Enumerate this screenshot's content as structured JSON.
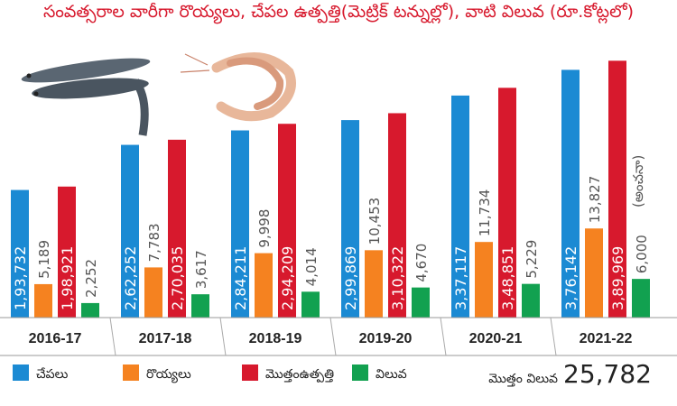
{
  "chart_data": {
    "type": "bar",
    "title": "సంవత్సరాల వారీగా రొయ్యలు, చేపల ఉత్పత్తి(మెట్రిక్ టన్నుల్లో), వాటి విలువ (రూ.కోట్లలో)",
    "categories": [
      "2016-17",
      "2017-18",
      "2018-19",
      "2019-20",
      "2020-21",
      "2021-22"
    ],
    "series": [
      {
        "name": "చేపలు",
        "color": "#1b8ad3",
        "values": [
          193732,
          262252,
          284211,
          299869,
          337117,
          376142
        ],
        "labels": [
          "1,93,732",
          "2,62,252",
          "2,84,211",
          "2,99,869",
          "3,37,117",
          "3,76,142"
        ],
        "label_inside": true
      },
      {
        "name": "రొయ్యలు",
        "color": "#f58220",
        "values": [
          5189,
          7783,
          9998,
          10453,
          11734,
          13827
        ],
        "labels": [
          "5,189",
          "7,783",
          "9,998",
          "10,453",
          "11,734",
          "13,827"
        ],
        "label_inside": false
      },
      {
        "name": "మొత్తంఉత్పత్తి",
        "color": "#d7192d",
        "values": [
          198921,
          270035,
          294209,
          310322,
          348851,
          389969
        ],
        "labels": [
          "1,98,921",
          "2,70,035",
          "2,94,209",
          "3,10,322",
          "3,48,851",
          "3,89,969"
        ],
        "label_inside": true
      },
      {
        "name": "విలువ",
        "color": "#12a150",
        "values": [
          2252,
          3617,
          4014,
          4670,
          5229,
          6000
        ],
        "labels": [
          "2,252",
          "3,617",
          "4,014",
          "4,670",
          "5,229",
          "6,000"
        ],
        "label_inside": false
      }
    ],
    "annotations": [
      "(అంచనా)"
    ],
    "ylim": [
      0,
      400000
    ],
    "legend_position": "bottom",
    "grid": false
  },
  "total": {
    "label": "మొత్తం విలువ",
    "value": "25,782"
  }
}
